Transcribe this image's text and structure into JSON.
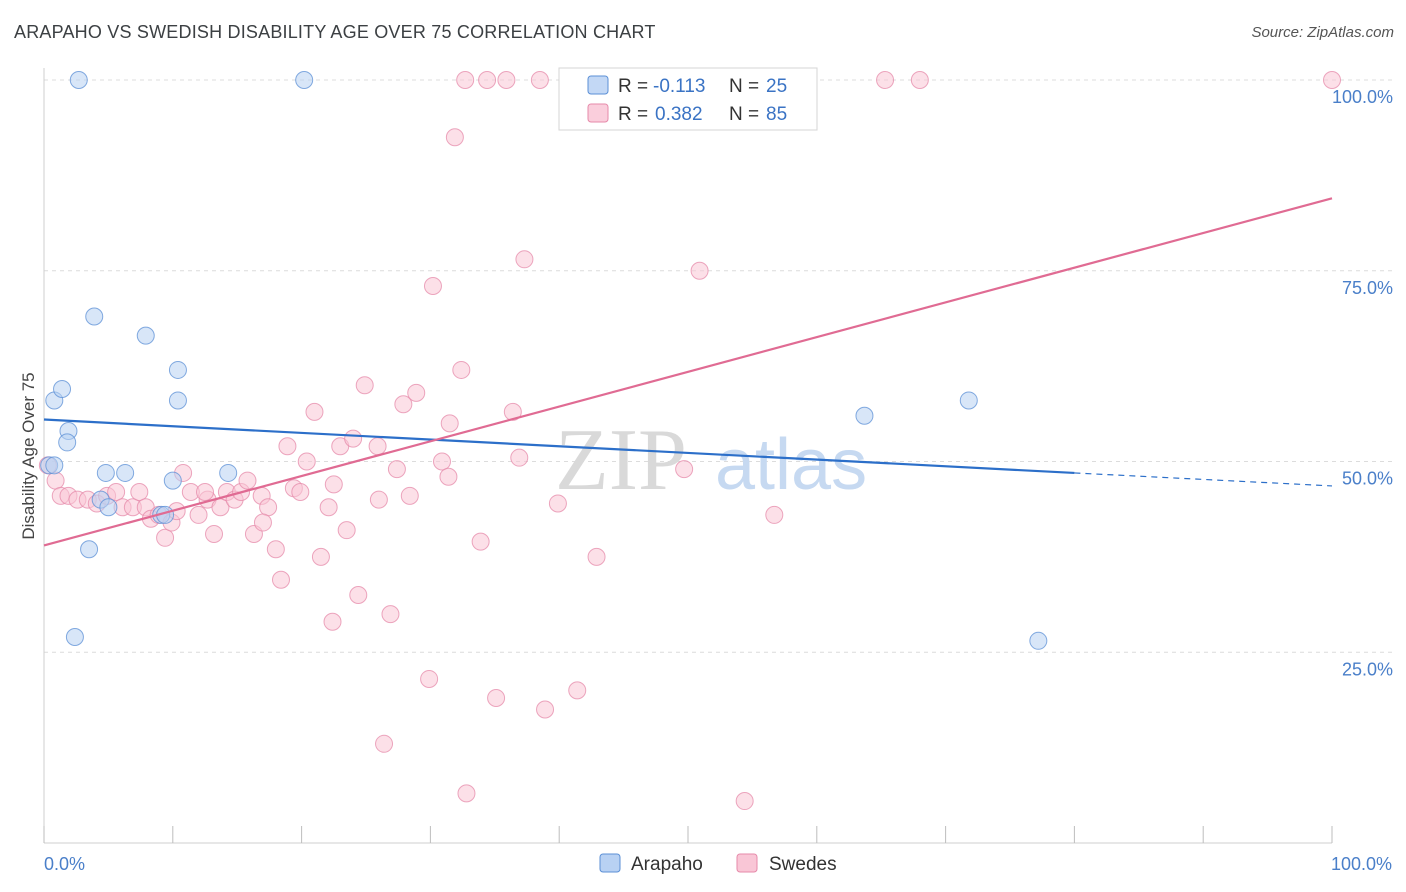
{
  "title": "ARAPAHO VS SWEDISH DISABILITY AGE OVER 75 CORRELATION CHART",
  "source": "Source: ZipAtlas.com",
  "watermark": {
    "zip": "ZIP",
    "atlas": "atlas"
  },
  "chart_data": {
    "type": "scatter",
    "ylabel": "Disability Age Over 75",
    "xlim": [
      0,
      100
    ],
    "ylim": [
      0,
      100
    ],
    "x_tick_labels": {
      "left": "0.0%",
      "right": "100.0%"
    },
    "y_ticks": [
      {
        "value": 100,
        "label": "100.0%"
      },
      {
        "value": 75,
        "label": "75.0%"
      },
      {
        "value": 50,
        "label": "50.0%"
      },
      {
        "value": 25,
        "label": "25.0%"
      }
    ],
    "legend": {
      "r_label": "R =",
      "n_label": "N =",
      "entries": [
        {
          "name": "Arapaho",
          "r": "-0.113",
          "n": "25"
        },
        {
          "name": "Swedes",
          "r": "0.382",
          "n": "85"
        }
      ]
    },
    "colors": {
      "arapaho_fill": "#b8d1f3",
      "arapaho_stroke": "#5b8fd6",
      "arapaho_line": "#2c6fc9",
      "swedes_fill": "#f9c6d6",
      "swedes_stroke": "#e68aaa",
      "swedes_line": "#e06b93",
      "tick_label": "#4a7fc9"
    },
    "series": [
      {
        "name": "Arapaho",
        "trend": {
          "x0": 0,
          "y0": 55.5,
          "x1": 80,
          "y1": 48.5,
          "dash_to_x": 100,
          "dash_to_y": 46.8
        },
        "points": [
          [
            2.7,
            100
          ],
          [
            20.2,
            100
          ],
          [
            0.8,
            58
          ],
          [
            1.4,
            59.5
          ],
          [
            3.9,
            69
          ],
          [
            7.9,
            66.5
          ],
          [
            10.4,
            62
          ],
          [
            10.4,
            58
          ],
          [
            1.9,
            54
          ],
          [
            1.8,
            52.5
          ],
          [
            0.4,
            49.5
          ],
          [
            0.8,
            49.5
          ],
          [
            4.8,
            48.5
          ],
          [
            6.3,
            48.5
          ],
          [
            10.0,
            47.5
          ],
          [
            14.3,
            48.5
          ],
          [
            4.4,
            45
          ],
          [
            5.0,
            44
          ],
          [
            9.1,
            43
          ],
          [
            9.4,
            43
          ],
          [
            3.5,
            38.5
          ],
          [
            2.4,
            27
          ],
          [
            63.7,
            56
          ],
          [
            71.8,
            58
          ],
          [
            77.2,
            26.5
          ]
        ]
      },
      {
        "name": "Swedes",
        "trend": {
          "x0": 0,
          "y0": 39,
          "x1": 100,
          "y1": 84.5
        },
        "points": [
          [
            0.3,
            49.5
          ],
          [
            0.9,
            47.5
          ],
          [
            1.3,
            45.5
          ],
          [
            1.9,
            45.5
          ],
          [
            2.6,
            45
          ],
          [
            3.4,
            45
          ],
          [
            4.1,
            44.5
          ],
          [
            4.9,
            45.5
          ],
          [
            5.6,
            46
          ],
          [
            6.1,
            44
          ],
          [
            6.9,
            44
          ],
          [
            7.4,
            46
          ],
          [
            7.9,
            44
          ],
          [
            8.3,
            42.5
          ],
          [
            8.9,
            43
          ],
          [
            9.4,
            40
          ],
          [
            9.9,
            42
          ],
          [
            10.3,
            43.5
          ],
          [
            10.8,
            48.5
          ],
          [
            11.4,
            46
          ],
          [
            12.0,
            43
          ],
          [
            12.7,
            45
          ],
          [
            13.2,
            40.5
          ],
          [
            13.7,
            44
          ],
          [
            14.2,
            46
          ],
          [
            14.8,
            45
          ],
          [
            15.3,
            46
          ],
          [
            15.8,
            47.5
          ],
          [
            16.3,
            40.5
          ],
          [
            16.9,
            45.5
          ],
          [
            17.4,
            44
          ],
          [
            18.0,
            38.5
          ],
          [
            18.4,
            34.5
          ],
          [
            18.9,
            52
          ],
          [
            19.4,
            46.5
          ],
          [
            19.9,
            46
          ],
          [
            20.4,
            50
          ],
          [
            21.0,
            56.5
          ],
          [
            21.5,
            37.5
          ],
          [
            22.1,
            44
          ],
          [
            22.4,
            29
          ],
          [
            23.0,
            52
          ],
          [
            23.5,
            41
          ],
          [
            24.0,
            53
          ],
          [
            24.4,
            32.5
          ],
          [
            24.9,
            60
          ],
          [
            25.9,
            52
          ],
          [
            26.4,
            13
          ],
          [
            26.9,
            30
          ],
          [
            27.4,
            49
          ],
          [
            27.9,
            57.5
          ],
          [
            28.4,
            45.5
          ],
          [
            28.9,
            59
          ],
          [
            29.9,
            21.5
          ],
          [
            30.2,
            73
          ],
          [
            30.9,
            50
          ],
          [
            31.4,
            48
          ],
          [
            31.9,
            92.5
          ],
          [
            32.4,
            62
          ],
          [
            32.7,
            100
          ],
          [
            32.8,
            6.5
          ],
          [
            33.9,
            39.5
          ],
          [
            34.4,
            100
          ],
          [
            35.1,
            19
          ],
          [
            35.9,
            100
          ],
          [
            36.4,
            56.5
          ],
          [
            36.9,
            50.5
          ],
          [
            37.3,
            76.5
          ],
          [
            38.9,
            17.5
          ],
          [
            39.9,
            44.5
          ],
          [
            41.4,
            20
          ],
          [
            42.9,
            37.5
          ],
          [
            50.9,
            75
          ],
          [
            54.4,
            5.5
          ],
          [
            56.7,
            43
          ],
          [
            68.0,
            100
          ],
          [
            65.3,
            100
          ],
          [
            100,
            100
          ],
          [
            38.5,
            100
          ],
          [
            49.7,
            49
          ],
          [
            31.5,
            55
          ],
          [
            26.0,
            45
          ],
          [
            22.5,
            47
          ],
          [
            17.0,
            42
          ],
          [
            12.5,
            46
          ]
        ]
      }
    ]
  }
}
